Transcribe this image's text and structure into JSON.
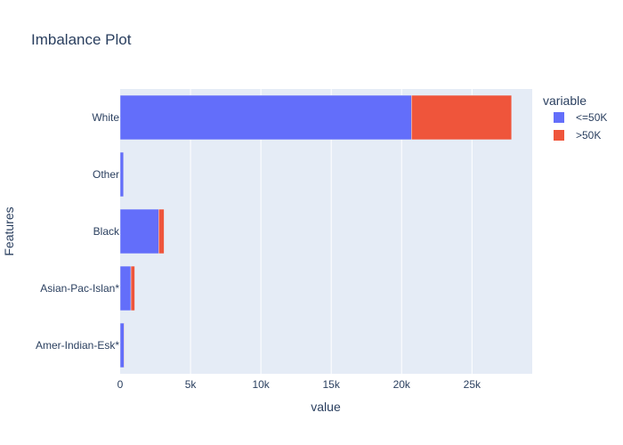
{
  "chart_data": {
    "type": "bar",
    "orientation": "horizontal",
    "barmode": "stack",
    "title": "Imbalance Plot",
    "xlabel": "value",
    "ylabel": "Features",
    "categories": [
      "Amer-Indian-Esk*",
      "Asian-Pac-Islan*",
      "Black",
      "Other",
      "White"
    ],
    "series": [
      {
        "name": "<=50K",
        "color": "#636efa",
        "values": [
          275,
          763,
          2737,
          246,
          20699
        ]
      },
      {
        "name": ">50K",
        "color": "#ef553b",
        "values": [
          36,
          276,
          387,
          25,
          7117
        ]
      }
    ],
    "xlim": [
      0,
      29280
    ],
    "xticks": [
      0,
      5000,
      10000,
      15000,
      20000,
      25000
    ],
    "xtick_labels": [
      "0",
      "5k",
      "10k",
      "15k",
      "20k",
      "25k"
    ],
    "legend": {
      "title": "variable",
      "position": "top-right"
    },
    "grid": true,
    "plot_background": "#e5ecf6"
  }
}
